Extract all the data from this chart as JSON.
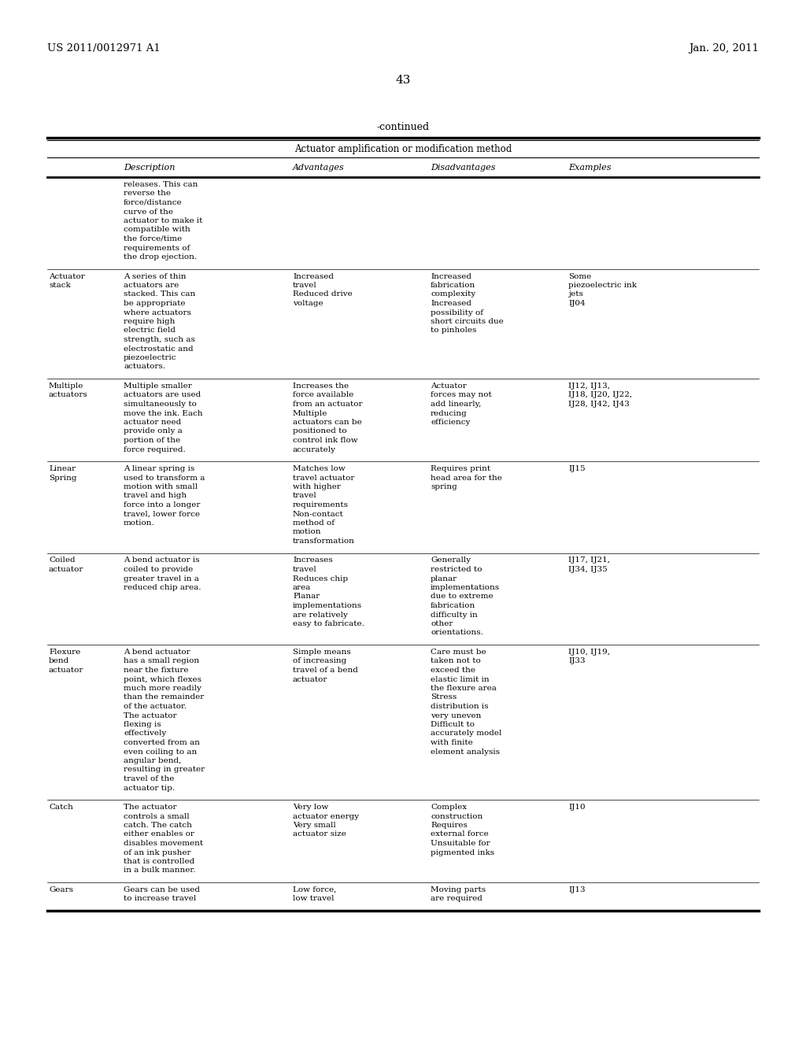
{
  "header_left": "US 2011/0012971 A1",
  "header_right": "Jan. 20, 2011",
  "page_number": "43",
  "continued_label": "-continued",
  "table_title": "Actuator amplification or modification method",
  "columns": [
    "Description",
    "Advantages",
    "Disadvantages",
    "Examples"
  ],
  "col_headers_italic": true,
  "rows": [
    {
      "label": "",
      "description": "releases. This can\nreverse the\nforce/distance\ncurve of the\nactuator to make it\ncompatible with\nthe force/time\nrequirements of\nthe drop ejection.",
      "advantages": "",
      "disadvantages": "",
      "examples": ""
    },
    {
      "label": "Actuator\nstack",
      "description": "A series of thin\nactuators are\nstacked. This can\nbe appropriate\nwhere actuators\nrequire high\nelectric field\nstrength, such as\nelectrostatic and\npiezoelectric\nactuators.",
      "advantages": "Increased\ntravel\nReduced drive\nvoltage",
      "disadvantages": "Increased\nfabrication\ncomplexity\nIncreased\npossibility of\nshort circuits due\nto pinholes",
      "examples": "Some\npiezoelectric ink\njets\nIJ04"
    },
    {
      "label": "Multiple\nactuators",
      "description": "Multiple smaller\nactuators are used\nsimultaneously to\nmove the ink. Each\nactuator need\nprovide only a\nportion of the\nforce required.",
      "advantages": "Increases the\nforce available\nfrom an actuator\nMultiple\nactuators can be\npositioned to\ncontrol ink flow\naccurately",
      "disadvantages": "Actuator\nforces may not\nadd linearly,\nreducing\nefficiency",
      "examples": "IJ12, IJ13,\nIJ18, IJ20, IJ22,\nIJ28, IJ42, IJ43"
    },
    {
      "label": "Linear\nSpring",
      "description": "A linear spring is\nused to transform a\nmotion with small\ntravel and high\nforce into a longer\ntravel, lower force\nmotion.",
      "advantages": "Matches low\ntravel actuator\nwith higher\ntravel\nrequirements\nNon-contact\nmethod of\nmotion\ntransformation",
      "disadvantages": "Requires print\nhead area for the\nspring",
      "examples": "IJ15"
    },
    {
      "label": "Coiled\nactuator",
      "description": "A bend actuator is\ncoiled to provide\ngreater travel in a\nreduced chip area.",
      "advantages": "Increases\ntravel\nReduces chip\narea\nPlanar\nimplementations\nare relatively\neasy to fabricate.",
      "disadvantages": "Generally\nrestricted to\nplanar\nimplementations\ndue to extreme\nfabrication\ndifficulty in\nother\norientations.",
      "examples": "IJ17, IJ21,\nIJ34, IJ35"
    },
    {
      "label": "Flexure\nbend\nactuator",
      "description": "A bend actuator\nhas a small region\nnear the fixture\npoint, which flexes\nmuch more readily\nthan the remainder\nof the actuator.\nThe actuator\nflexing is\neffectively\nconverted from an\neven coiling to an\nangular bend,\nresulting in greater\ntravel of the\nactuator tip.",
      "advantages": "Simple means\nof increasing\ntravel of a bend\nactuator",
      "disadvantages": "Care must be\ntaken not to\nexceed the\nelastic limit in\nthe flexure area\nStress\ndistribution is\nvery uneven\nDifficult to\naccurately model\nwith finite\nelement analysis",
      "examples": "IJ10, IJ19,\nIJ33"
    },
    {
      "label": "Catch",
      "description": "The actuator\ncontrols a small\ncatch. The catch\neither enables or\ndisables movement\nof an ink pusher\nthat is controlled\nin a bulk manner.",
      "advantages": "Very low\nactuator energy\nVery small\nactuator size",
      "disadvantages": "Complex\nconstruction\nRequires\nexternal force\nUnsuitable for\npigmented inks",
      "examples": "IJ10"
    },
    {
      "label": "Gears",
      "description": "Gears can be used\nto increase travel",
      "advantages": "Low force,\nlow travel",
      "disadvantages": "Moving parts\nare required",
      "examples": "IJ13"
    }
  ],
  "bg_color": "#ffffff",
  "text_color": "#000000",
  "font_size": 7.5,
  "header_font_size": 9.5,
  "table_font_size": 7.5
}
